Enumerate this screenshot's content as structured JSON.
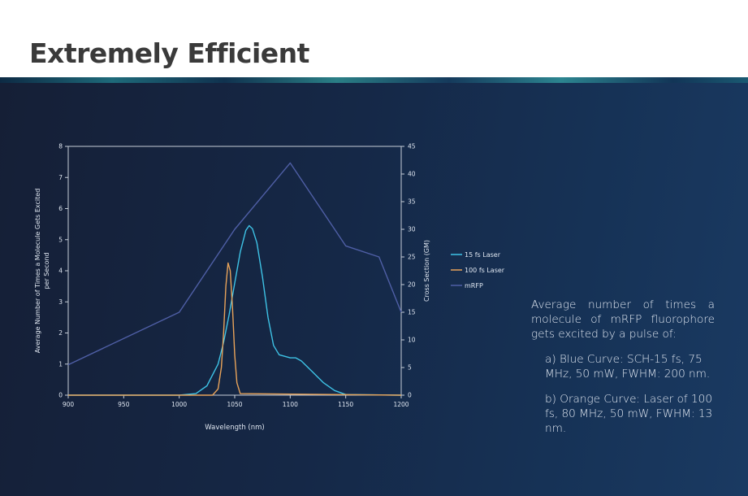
{
  "slide": {
    "title": "Extremely Efficient",
    "description": {
      "intro": "Average number of times a molecule of mRFP fluorophore gets excited by a pulse of:",
      "item_a": "a) Blue Curve: SCH-15 fs, 75 MHz, 50 mW, FWHM: 200 nm.",
      "item_b": "b) Orange Curve: Laser of 100 fs, 80 MHz, 50 mW, FWHM: 13 nm."
    }
  },
  "colors": {
    "blue_series": "#3ec3e6",
    "orange_series": "#e8a35a",
    "mrfp_series": "#4f5fa6",
    "axis": "#c7ced8",
    "text": "#dfe6f0"
  },
  "chart_data": {
    "type": "line",
    "xlabel": "Wavelength (nm)",
    "ylabel_left": "Average Number of Times a Molecule Gets Excited per Second",
    "ylabel_right": "Cross Section (GM)",
    "xlim": [
      900,
      1200
    ],
    "ylim_left": [
      0,
      8
    ],
    "ylim_right": [
      0,
      45
    ],
    "x_ticks": [
      900,
      950,
      1000,
      1050,
      1100,
      1150,
      1200
    ],
    "y_left_ticks": [
      0,
      1,
      2,
      3,
      4,
      5,
      6,
      7,
      8
    ],
    "y_right_ticks": [
      0,
      5,
      10,
      15,
      20,
      25,
      30,
      35,
      40,
      45
    ],
    "grid": false,
    "legend_position": "right",
    "series": [
      {
        "name": "15 fs Laser",
        "axis": "left",
        "color": "#3ec3e6",
        "x": [
          900,
          1000,
          1015,
          1025,
          1035,
          1040,
          1045,
          1050,
          1055,
          1060,
          1063,
          1066,
          1070,
          1075,
          1080,
          1085,
          1090,
          1095,
          1100,
          1105,
          1110,
          1120,
          1130,
          1140,
          1150,
          1200
        ],
        "y": [
          0,
          0,
          0.05,
          0.3,
          1.0,
          1.7,
          2.6,
          3.6,
          4.6,
          5.3,
          5.45,
          5.35,
          4.9,
          3.8,
          2.5,
          1.6,
          1.3,
          1.25,
          1.2,
          1.2,
          1.1,
          0.75,
          0.4,
          0.15,
          0.02,
          0
        ]
      },
      {
        "name": "100 fs Laser",
        "axis": "left",
        "color": "#e8a35a",
        "x": [
          900,
          1030,
          1035,
          1038,
          1040,
          1042,
          1044,
          1046,
          1048,
          1050,
          1052,
          1055,
          1200
        ],
        "y": [
          0,
          0,
          0.2,
          0.9,
          2.0,
          3.5,
          4.25,
          4.0,
          2.8,
          1.3,
          0.4,
          0.05,
          0
        ]
      },
      {
        "name": "mRFP",
        "axis": "right",
        "color": "#4f5fa6",
        "x": [
          900,
          1000,
          1050,
          1100,
          1150,
          1180,
          1200
        ],
        "y": [
          5.5,
          15,
          30,
          42,
          27,
          25,
          15
        ]
      }
    ]
  }
}
